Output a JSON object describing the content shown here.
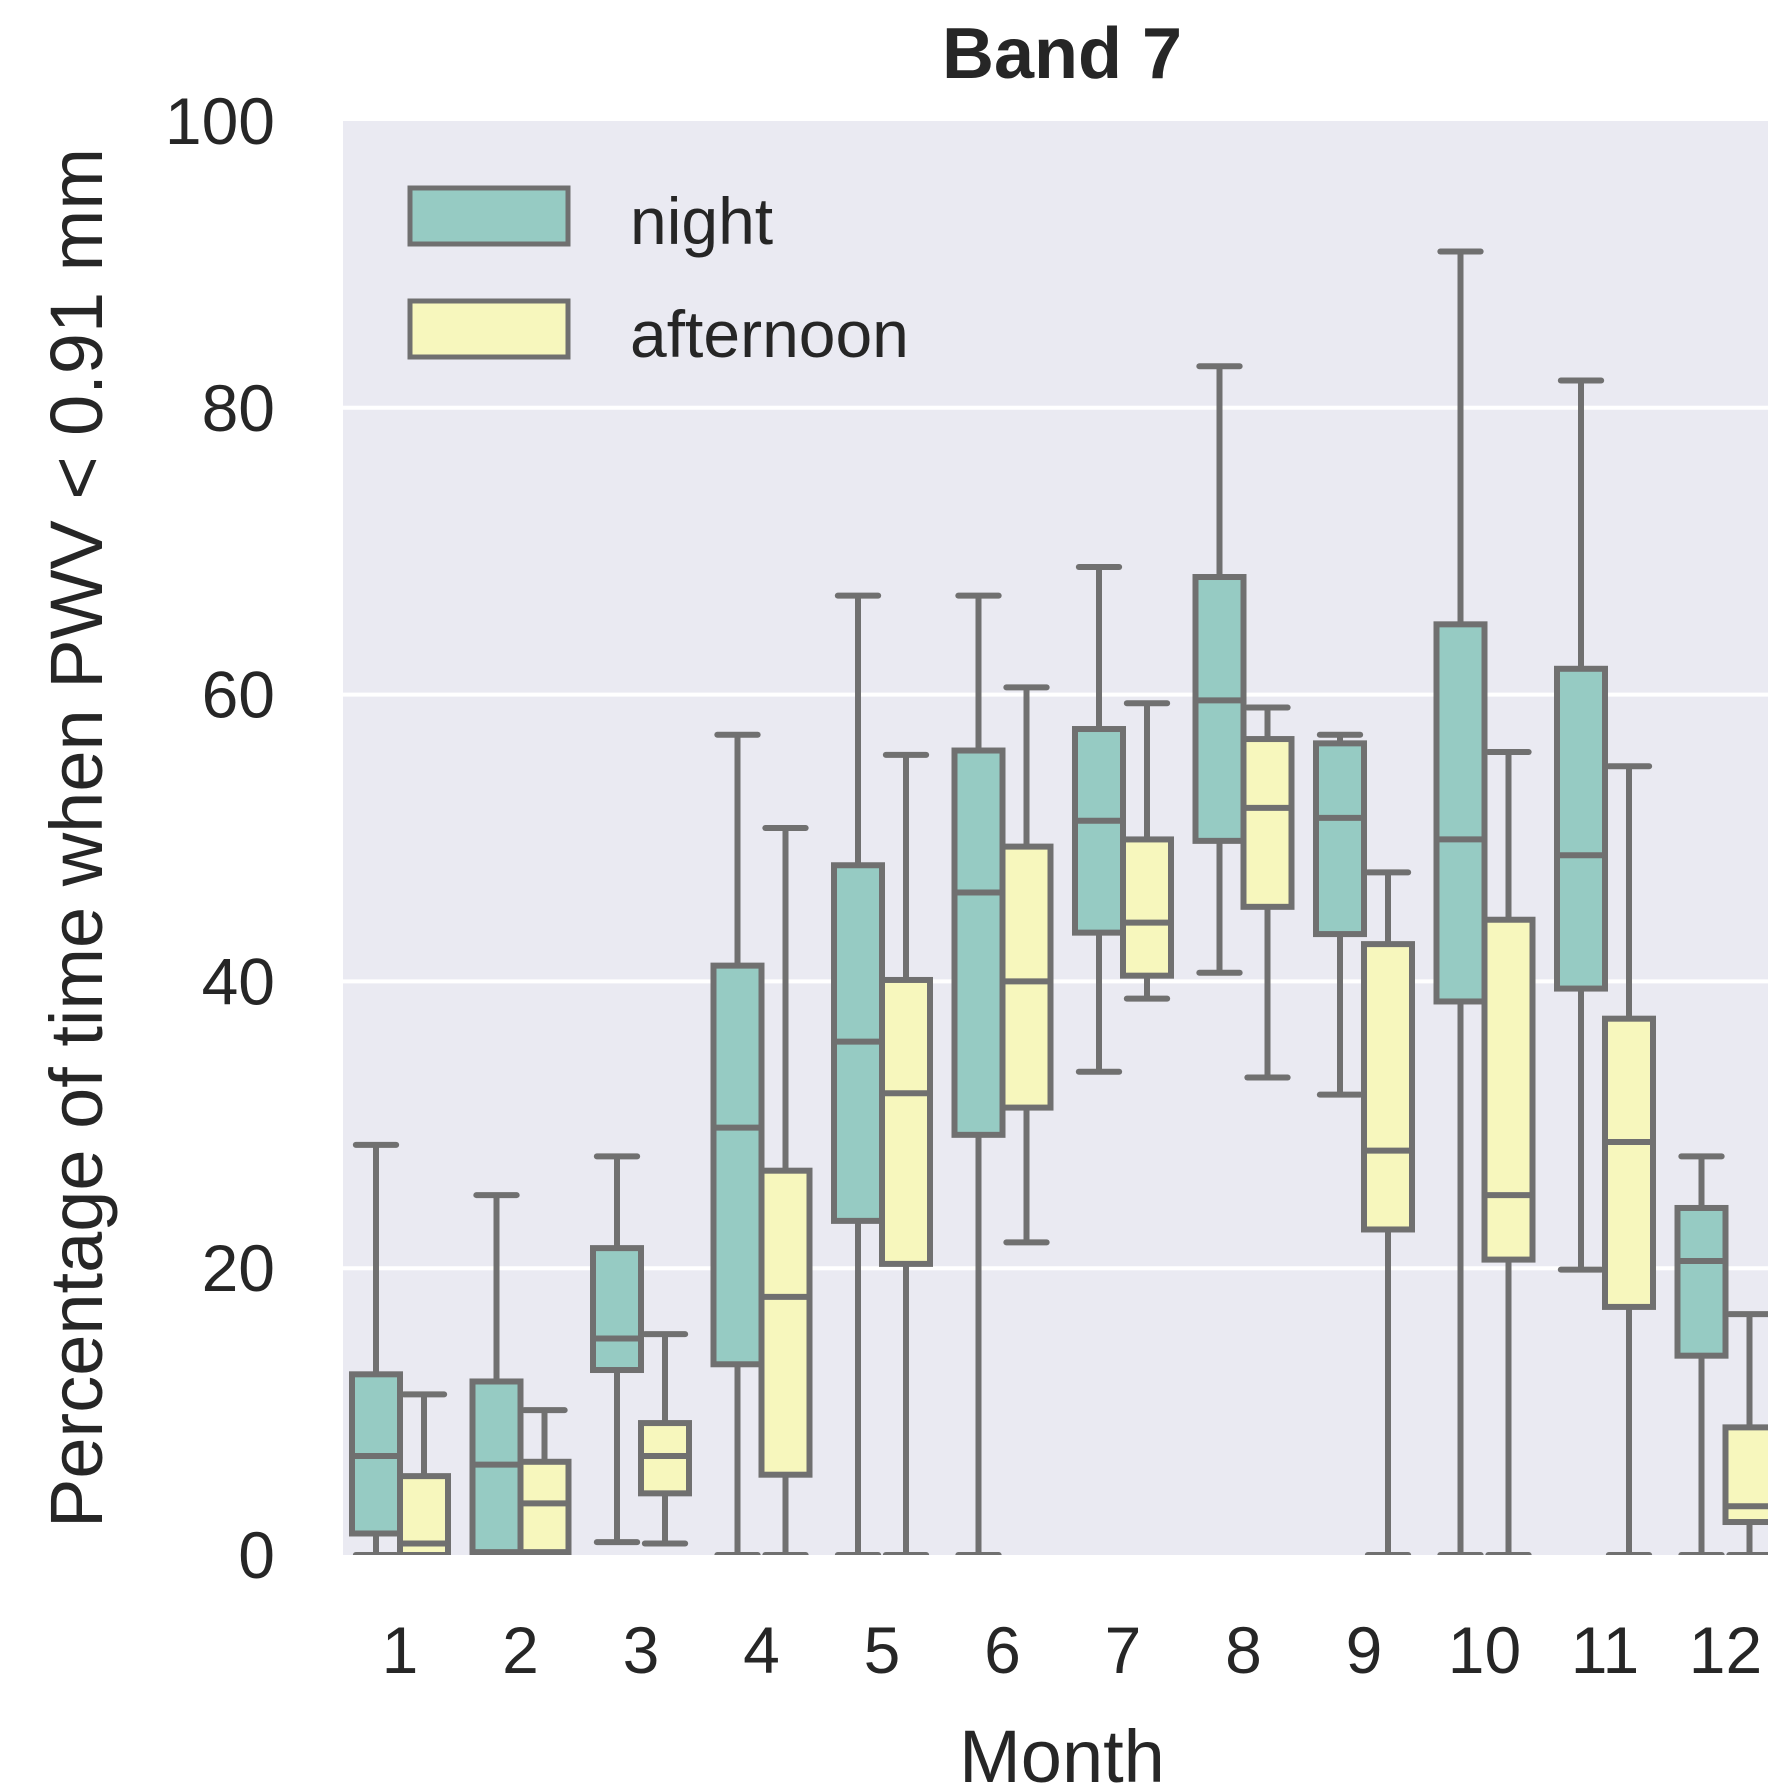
{
  "chart_data": {
    "type": "box",
    "title": "Band 7",
    "xlabel": "Month",
    "ylabel": "Percentage of time when PWV < 0.91 mm",
    "ylim": [
      0,
      100
    ],
    "yticks": [
      0,
      20,
      40,
      60,
      80,
      100
    ],
    "grid": "horizontal",
    "legend_position": "top-left",
    "categories": [
      "1",
      "2",
      "3",
      "4",
      "5",
      "6",
      "7",
      "8",
      "9",
      "10",
      "11",
      "12"
    ],
    "colors": {
      "background": "#eaeaf2",
      "grid": "#ffffff",
      "stroke": "#707070",
      "night": "#96cbc3",
      "afternoon": "#f7f7bd"
    },
    "series": [
      {
        "name": "night",
        "boxes": [
          {
            "whislo": 0,
            "q1": 1.5,
            "med": 6.9,
            "q3": 12.6,
            "whishi": 28.6
          },
          {
            "whislo": 0,
            "q1": 0.2,
            "med": 6.3,
            "q3": 12.1,
            "whishi": 25.1
          },
          {
            "whislo": 0.9,
            "q1": 12.9,
            "med": 15.1,
            "q3": 21.4,
            "whishi": 27.8
          },
          {
            "whislo": 0,
            "q1": 13.3,
            "med": 29.8,
            "q3": 41.1,
            "whishi": 57.2
          },
          {
            "whislo": 0,
            "q1": 23.3,
            "med": 35.8,
            "q3": 48.1,
            "whishi": 66.9
          },
          {
            "whislo": 0,
            "q1": 29.3,
            "med": 46.2,
            "q3": 56.1,
            "whishi": 66.9
          },
          {
            "whislo": 33.7,
            "q1": 43.4,
            "med": 51.2,
            "q3": 57.6,
            "whishi": 68.9
          },
          {
            "whislo": 40.6,
            "q1": 49.8,
            "med": 59.6,
            "q3": 68.2,
            "whishi": 82.9
          },
          {
            "whislo": 32.1,
            "q1": 43.3,
            "med": 51.4,
            "q3": 56.6,
            "whishi": 57.2
          },
          {
            "whislo": 0,
            "q1": 38.6,
            "med": 49.9,
            "q3": 64.9,
            "whishi": 90.9
          },
          {
            "whislo": 19.9,
            "q1": 39.5,
            "med": 48.8,
            "q3": 61.8,
            "whishi": 81.9
          },
          {
            "whislo": 0,
            "q1": 13.9,
            "med": 20.5,
            "q3": 24.2,
            "whishi": 27.8
          }
        ]
      },
      {
        "name": "afternoon",
        "boxes": [
          {
            "whislo": 0,
            "q1": 0,
            "med": 0.8,
            "q3": 5.5,
            "whishi": 11.2
          },
          {
            "whislo": 0,
            "q1": 0.2,
            "med": 3.6,
            "q3": 6.5,
            "whishi": 10.1
          },
          {
            "whislo": 0.8,
            "q1": 4.3,
            "med": 6.9,
            "q3": 9.2,
            "whishi": 15.4
          },
          {
            "whislo": 0,
            "q1": 5.6,
            "med": 18.0,
            "q3": 26.8,
            "whishi": 50.7
          },
          {
            "whislo": 0,
            "q1": 20.3,
            "med": 32.2,
            "q3": 40.1,
            "whishi": 55.8
          },
          {
            "whislo": 21.8,
            "q1": 31.2,
            "med": 40.0,
            "q3": 49.4,
            "whishi": 60.5
          },
          {
            "whislo": 38.8,
            "q1": 40.4,
            "med": 44.1,
            "q3": 49.9,
            "whishi": 59.4
          },
          {
            "whislo": 33.3,
            "q1": 45.2,
            "med": 52.1,
            "q3": 56.9,
            "whishi": 59.1
          },
          {
            "whislo": 0,
            "q1": 22.7,
            "med": 28.2,
            "q3": 42.6,
            "whishi": 47.6
          },
          {
            "whislo": 0,
            "q1": 20.6,
            "med": 25.1,
            "q3": 44.3,
            "whishi": 56.0
          },
          {
            "whislo": 0,
            "q1": 17.3,
            "med": 28.8,
            "q3": 37.4,
            "whishi": 55.0
          },
          {
            "whislo": 0,
            "q1": 2.3,
            "med": 3.4,
            "q3": 8.9,
            "whishi": 16.8
          }
        ]
      }
    ]
  }
}
